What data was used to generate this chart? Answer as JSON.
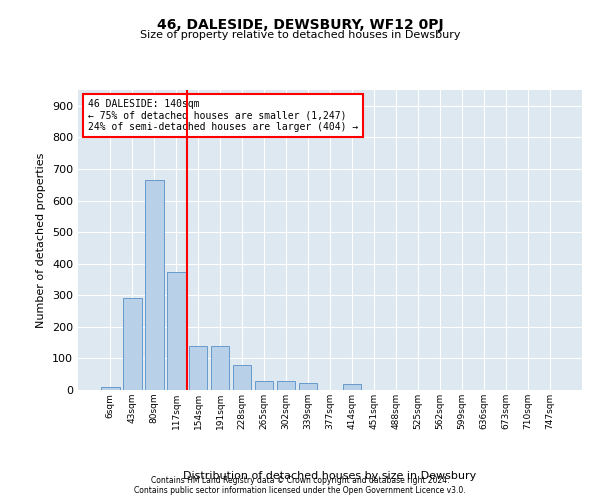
{
  "title": "46, DALESIDE, DEWSBURY, WF12 0PJ",
  "subtitle": "Size of property relative to detached houses in Dewsbury",
  "xlabel": "Distribution of detached houses by size in Dewsbury",
  "ylabel": "Number of detached properties",
  "bin_labels": [
    "6sqm",
    "43sqm",
    "80sqm",
    "117sqm",
    "154sqm",
    "191sqm",
    "228sqm",
    "265sqm",
    "302sqm",
    "339sqm",
    "377sqm",
    "414sqm",
    "451sqm",
    "488sqm",
    "525sqm",
    "562sqm",
    "599sqm",
    "636sqm",
    "673sqm",
    "710sqm",
    "747sqm"
  ],
  "bar_values": [
    10,
    290,
    665,
    375,
    140,
    140,
    80,
    30,
    28,
    22,
    0,
    18,
    0,
    0,
    0,
    0,
    0,
    0,
    0,
    0,
    0
  ],
  "bar_color": "#b8d0e8",
  "bar_edgecolor": "#6699cc",
  "vline_color": "red",
  "vline_position": 3.5,
  "annotation_line1": "46 DALESIDE: 140sqm",
  "annotation_line2": "← 75% of detached houses are smaller (1,247)",
  "annotation_line3": "24% of semi-detached houses are larger (404) →",
  "annotation_box_color": "red",
  "ylim": [
    0,
    950
  ],
  "yticks": [
    0,
    100,
    200,
    300,
    400,
    500,
    600,
    700,
    800,
    900
  ],
  "background_color": "#dde8f0",
  "footer_line1": "Contains HM Land Registry data © Crown copyright and database right 2024.",
  "footer_line2": "Contains public sector information licensed under the Open Government Licence v3.0."
}
